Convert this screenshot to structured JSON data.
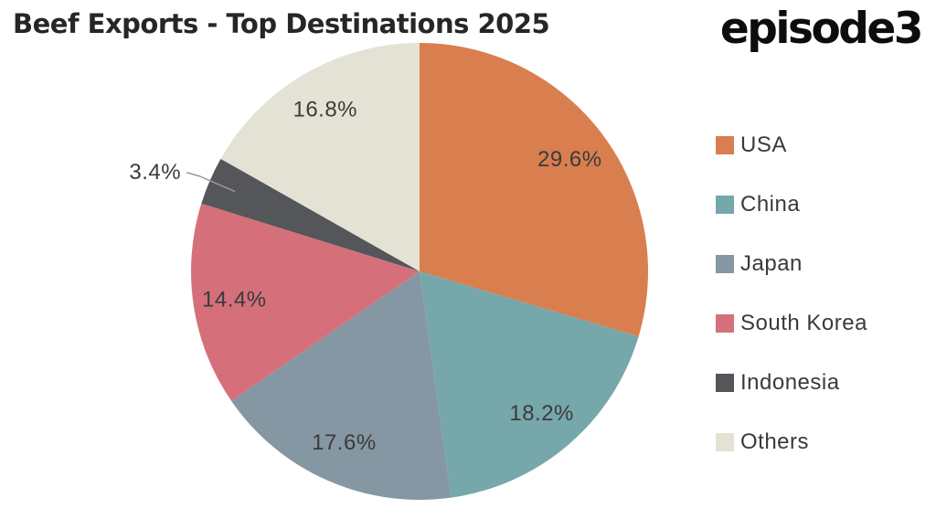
{
  "header": {
    "logo_text": "episode3"
  },
  "chart_data": {
    "type": "pie",
    "title": "Beef Exports - Top Destinations 2025",
    "categories": [
      "USA",
      "China",
      "Japan",
      "South Korea",
      "Indonesia",
      "Others"
    ],
    "values": [
      29.6,
      18.2,
      17.6,
      14.4,
      3.4,
      16.8
    ],
    "labels": [
      "29.6%",
      "18.2%",
      "17.6%",
      "14.4%",
      "3.4%",
      "16.8%"
    ],
    "colors": [
      "#D97E4E",
      "#76A7AB",
      "#8497A3",
      "#D5707B",
      "#545659",
      "#E3E2D4"
    ],
    "start_angle_deg": 0,
    "direction": "clockwise",
    "legend_position": "right",
    "label_color": "#3B3B3B",
    "leader_line_color": "#999999",
    "background_color": "#FFFFFF"
  }
}
